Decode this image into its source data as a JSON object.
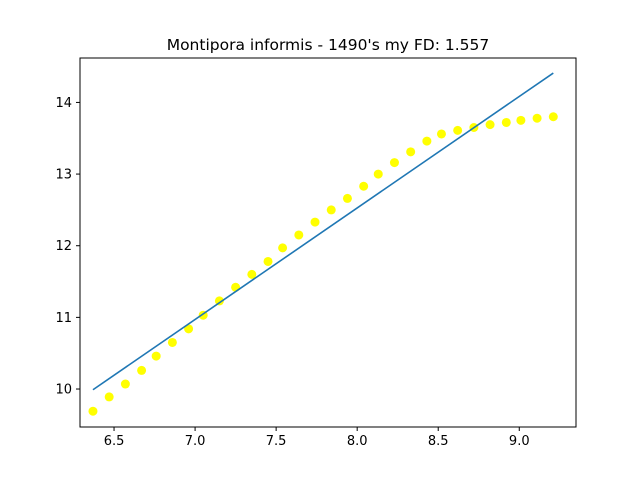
{
  "chart_data": {
    "type": "scatter",
    "title": "Montipora informis - 1490's my FD: 1.557",
    "xlabel": "",
    "ylabel": "",
    "xlim": [
      6.29,
      9.35
    ],
    "ylim": [
      9.47,
      14.62
    ],
    "xticks": [
      6.5,
      7.0,
      7.5,
      8.0,
      8.5,
      9.0
    ],
    "xtick_labels": [
      "6.5",
      "7.0",
      "7.5",
      "8.0",
      "8.5",
      "9.0"
    ],
    "yticks": [
      10,
      11,
      12,
      13,
      14
    ],
    "ytick_labels": [
      "10",
      "11",
      "12",
      "13",
      "14"
    ],
    "grid": false,
    "scatter_color": "#ffff00",
    "line_color": "#1f77b4",
    "points": [
      [
        6.37,
        9.69
      ],
      [
        6.47,
        9.89
      ],
      [
        6.57,
        10.07
      ],
      [
        6.67,
        10.26
      ],
      [
        6.76,
        10.46
      ],
      [
        6.86,
        10.65
      ],
      [
        6.96,
        10.84
      ],
      [
        7.05,
        11.03
      ],
      [
        7.15,
        11.23
      ],
      [
        7.25,
        11.42
      ],
      [
        7.35,
        11.6
      ],
      [
        7.45,
        11.78
      ],
      [
        7.54,
        11.97
      ],
      [
        7.64,
        12.15
      ],
      [
        7.74,
        12.33
      ],
      [
        7.84,
        12.5
      ],
      [
        7.94,
        12.66
      ],
      [
        8.04,
        12.83
      ],
      [
        8.13,
        13.0
      ],
      [
        8.23,
        13.16
      ],
      [
        8.33,
        13.31
      ],
      [
        8.43,
        13.46
      ],
      [
        8.52,
        13.56
      ],
      [
        8.62,
        13.61
      ],
      [
        8.72,
        13.65
      ],
      [
        8.82,
        13.69
      ],
      [
        8.92,
        13.72
      ],
      [
        9.01,
        13.75
      ],
      [
        9.11,
        13.78
      ],
      [
        9.21,
        13.8
      ]
    ],
    "fit_line": [
      [
        6.37,
        9.99
      ],
      [
        9.21,
        14.41
      ]
    ]
  }
}
